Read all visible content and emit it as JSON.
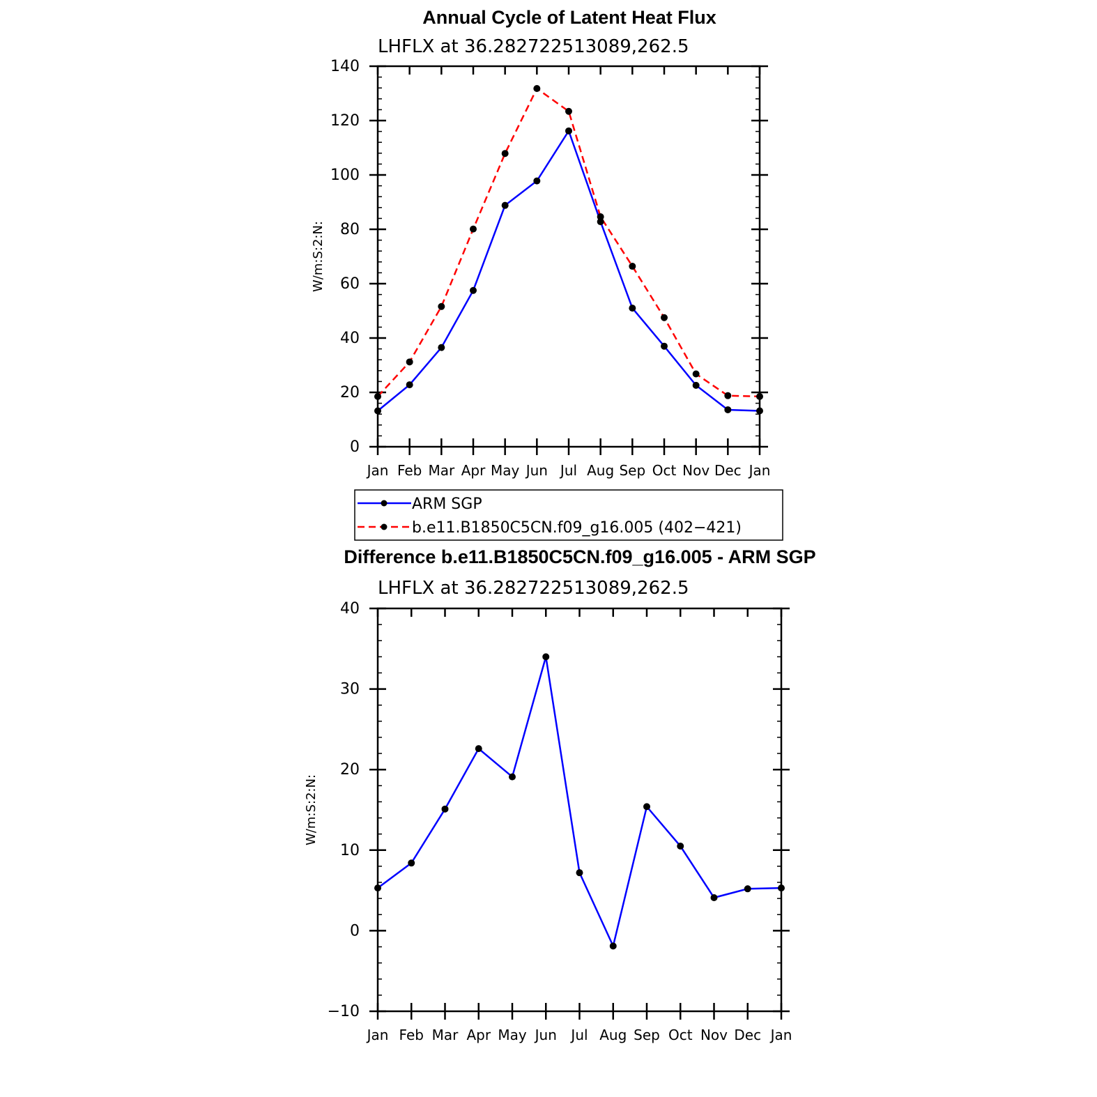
{
  "chart_data": [
    {
      "type": "line",
      "title": "Annual Cycle of Latent Heat Flux",
      "subtitle": "LHFLX at 36.282722513089,262.5",
      "xlabel": "",
      "ylabel": "W/m:S:2:N:",
      "categories": [
        "Jan",
        "Feb",
        "Mar",
        "Apr",
        "May",
        "Jun",
        "Jul",
        "Aug",
        "Sep",
        "Oct",
        "Nov",
        "Dec",
        "Jan"
      ],
      "ylim": [
        0,
        140
      ],
      "yticks": [
        0,
        20,
        40,
        60,
        80,
        100,
        120,
        140
      ],
      "series": [
        {
          "name": "ARM SGP",
          "color": "#0000ff",
          "dash": "solid",
          "values": [
            13.2,
            22.8,
            36.5,
            57.5,
            88.8,
            97.8,
            116.2,
            82.8,
            51.0,
            37.0,
            22.6,
            13.6,
            13.2
          ]
        },
        {
          "name": "b.e11.B1850C5CN.f09_g16.005 (402−421)",
          "color": "#ff0000",
          "dash": "dashed",
          "values": [
            18.5,
            31.2,
            51.6,
            80.1,
            107.9,
            131.8,
            123.4,
            84.6,
            66.4,
            47.5,
            26.8,
            18.8,
            18.5
          ]
        }
      ]
    },
    {
      "type": "line",
      "title": "Difference b.e11.B1850C5CN.f09_g16.005 - ARM SGP",
      "subtitle": "LHFLX at 36.282722513089,262.5",
      "xlabel": "",
      "ylabel": "W/m:S:2:N:",
      "categories": [
        "Jan",
        "Feb",
        "Mar",
        "Apr",
        "May",
        "Jun",
        "Jul",
        "Aug",
        "Sep",
        "Oct",
        "Nov",
        "Dec",
        "Jan"
      ],
      "ylim": [
        -10,
        40
      ],
      "yticks": [
        -10,
        0,
        10,
        20,
        30,
        40
      ],
      "ytick_labels": [
        "−10",
        "0",
        "10",
        "20",
        "30",
        "40"
      ],
      "series": [
        {
          "name": "Difference",
          "color": "#0000ff",
          "dash": "solid",
          "values": [
            5.3,
            8.4,
            15.1,
            22.6,
            19.1,
            34.0,
            7.2,
            -1.9,
            15.4,
            10.5,
            4.1,
            5.2,
            5.3
          ]
        }
      ]
    }
  ]
}
